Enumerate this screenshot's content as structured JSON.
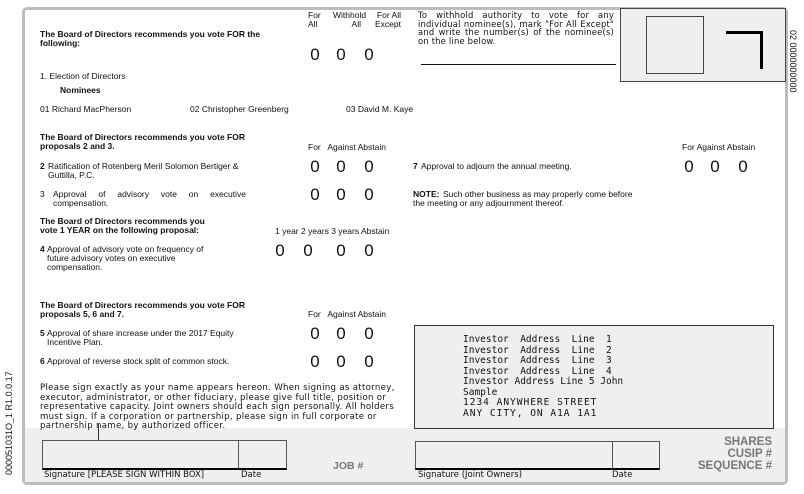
{
  "side_codes": {
    "left": "000051031O_1   R1.0.0.17",
    "right": "02 0000000000"
  },
  "section1": {
    "heading": "The Board of Directors recommends you vote FOR the following:",
    "cols": [
      "For All",
      "Withhold All",
      "For All Except"
    ],
    "item": "1. Election of Directors",
    "nominees_label": "Nominees",
    "nominees": [
      "01 Richard MacPherson",
      "02 Christopher Greenberg",
      "03 David M. Kaye"
    ],
    "withhold_instructions": "To withhold authority to vote for any individual nominee(s), mark \"For All Except\" and write the number(s) of the nominee(s) on the line below."
  },
  "section2": {
    "heading": "The Board of Directors recommends you vote FOR proposals 2 and 3.",
    "cols": "For   Against Abstain",
    "items": [
      {
        "num": "2",
        "text": "Ratification of Rotenberg Meril Solomon Bertiger & Guttilla, P.C."
      },
      {
        "num": "3",
        "text": "Approval of advisory vote on executive compensation."
      }
    ]
  },
  "section3": {
    "heading": "The Board of Directors recommends you vote 1 YEAR on the following proposal:",
    "cols": "1 year 2 years 3 years Abstain",
    "item": {
      "num": "4",
      "text": "Approval of advisory vote on frequency of future advisory votes on executive compensation."
    }
  },
  "section4": {
    "heading": "The Board of Directors recommends you vote FOR proposals 5, 6 and 7.",
    "cols": "For   Against Abstain",
    "items": [
      {
        "num": "5",
        "text": "Approval of share increase under the 2017 Equity Incentive Plan."
      },
      {
        "num": "6",
        "text": "Approval of reverse stock split of common stock."
      }
    ]
  },
  "item7": {
    "cols": "For Against Abstain",
    "num": "7",
    "text": "Approval to adjourn the annual meeting."
  },
  "note": {
    "label": "NOTE:",
    "text": "Such other business as may properly come before the meeting or any adjournment thereof."
  },
  "circle_glyph": "0",
  "sign_instructions": "Please sign exactly as your name appears hereon. When signing as attorney, executor, administrator, or other fiduciary, please give full title, position or representative capacity. Joint owners should each sign personally. All holders must sign. If a corporation or partnership, please sign in full corporate or partnership name, by authorized officer.",
  "address": [
    "Investor  Address  Line  1",
    "Investor  Address  Line  2",
    "Investor  Address  Line  3",
    "Investor  Address  Line  4",
    "Investor Address Line 5 John",
    "Sample",
    "1234 ANYWHERE STREET",
    "ANY CITY, ON A1A 1A1"
  ],
  "footer": {
    "signature_label": "Signature [PLEASE SIGN WITHIN BOX]",
    "date_label": "Date",
    "job": "JOB #",
    "joint_label": "Signature (Joint Owners)",
    "joint_date_label": "Date",
    "shares": "SHARES",
    "cusip": "CUSIP #",
    "sequence": "SEQUENCE #"
  }
}
